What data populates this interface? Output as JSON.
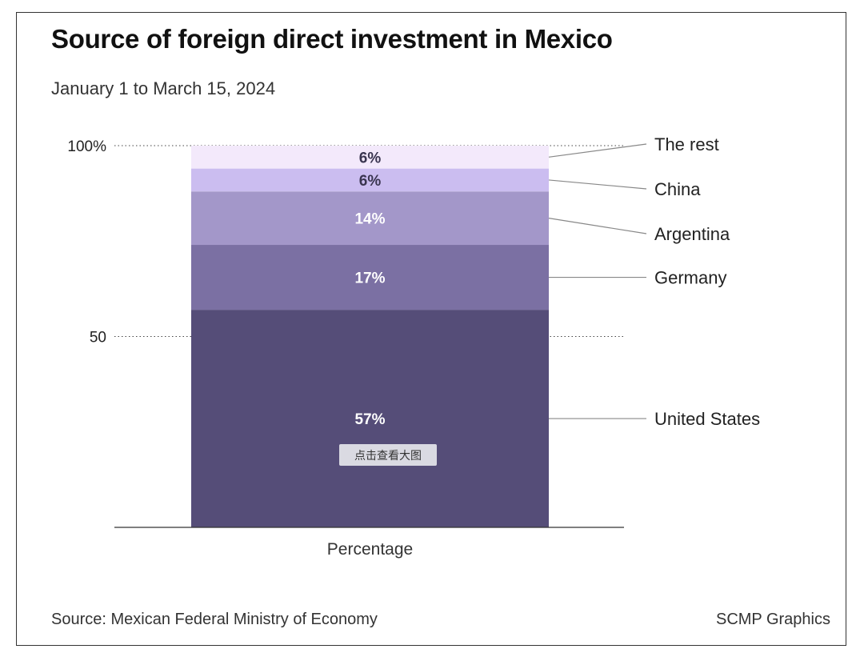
{
  "header": {
    "title": "Source of foreign direct investment in Mexico",
    "subtitle": "January 1 to March 15, 2024"
  },
  "footer": {
    "source": "Source: Mexican Federal Ministry of Economy",
    "credit": "SCMP Graphics"
  },
  "overlay": {
    "view_large_label": "点击查看大图"
  },
  "chart_data": {
    "type": "bar",
    "stacked": true,
    "categories": [
      "Percentage"
    ],
    "xlabel": "Percentage",
    "ylabel": "",
    "ylim": [
      0,
      100
    ],
    "ticks": [
      {
        "value": 100,
        "label": "100%"
      },
      {
        "value": 50,
        "label": "50"
      }
    ],
    "series": [
      {
        "name": "United States",
        "values": [
          57
        ],
        "label": "57%",
        "color": "#554d78",
        "label_color": "#ffffff"
      },
      {
        "name": "Germany",
        "values": [
          17
        ],
        "label": "17%",
        "color": "#7b70a3",
        "label_color": "#ffffff"
      },
      {
        "name": "Argentina",
        "values": [
          14
        ],
        "label": "14%",
        "color": "#a397c9",
        "label_color": "#ffffff"
      },
      {
        "name": "China",
        "values": [
          6
        ],
        "label": "6%",
        "color": "#cbbdf0",
        "label_color": "#3a3550"
      },
      {
        "name": "The rest",
        "values": [
          6
        ],
        "label": "6%",
        "color": "#f3e9fb",
        "label_color": "#3a3550"
      }
    ]
  }
}
